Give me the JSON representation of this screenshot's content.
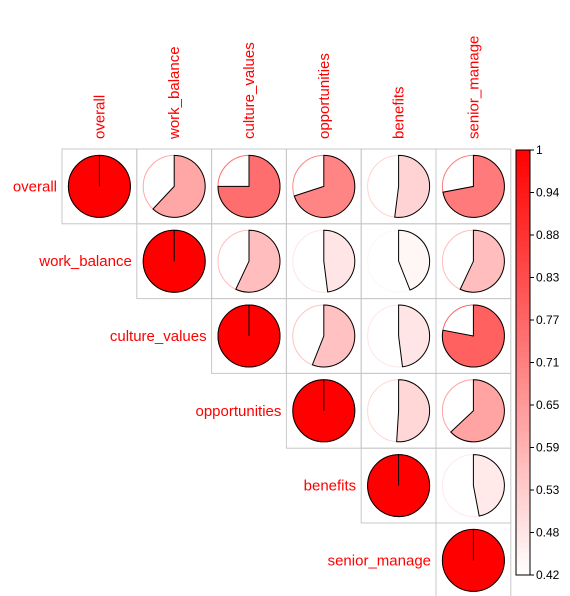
{
  "chart_data": {
    "type": "heatmap",
    "style": "corrplot-pie",
    "layout": "upper-triangle",
    "variables": [
      "overall",
      "work_balance",
      "culture_values",
      "opportunities",
      "benefits",
      "senior_manage"
    ],
    "matrix": [
      [
        1.0,
        0.62,
        0.75,
        0.7,
        0.52,
        0.72
      ],
      [
        0.62,
        1.0,
        0.57,
        0.48,
        0.44,
        0.57
      ],
      [
        0.75,
        0.57,
        1.0,
        0.56,
        0.48,
        0.78
      ],
      [
        0.7,
        0.48,
        0.56,
        1.0,
        0.51,
        0.63
      ],
      [
        0.52,
        0.44,
        0.48,
        0.51,
        1.0,
        0.47
      ],
      [
        0.72,
        0.57,
        0.78,
        0.63,
        0.47,
        1.0
      ]
    ],
    "colorbar": {
      "min": 0.42,
      "max": 1,
      "ticks": [
        "1",
        "0.94",
        "0.88",
        "0.83",
        "0.77",
        "0.71",
        "0.65",
        "0.59",
        "0.53",
        "0.48",
        "0.42"
      ],
      "color_low": "#ffffff",
      "color_high": "#ff0000"
    },
    "label_color": "#ff0000",
    "grid": true
  }
}
